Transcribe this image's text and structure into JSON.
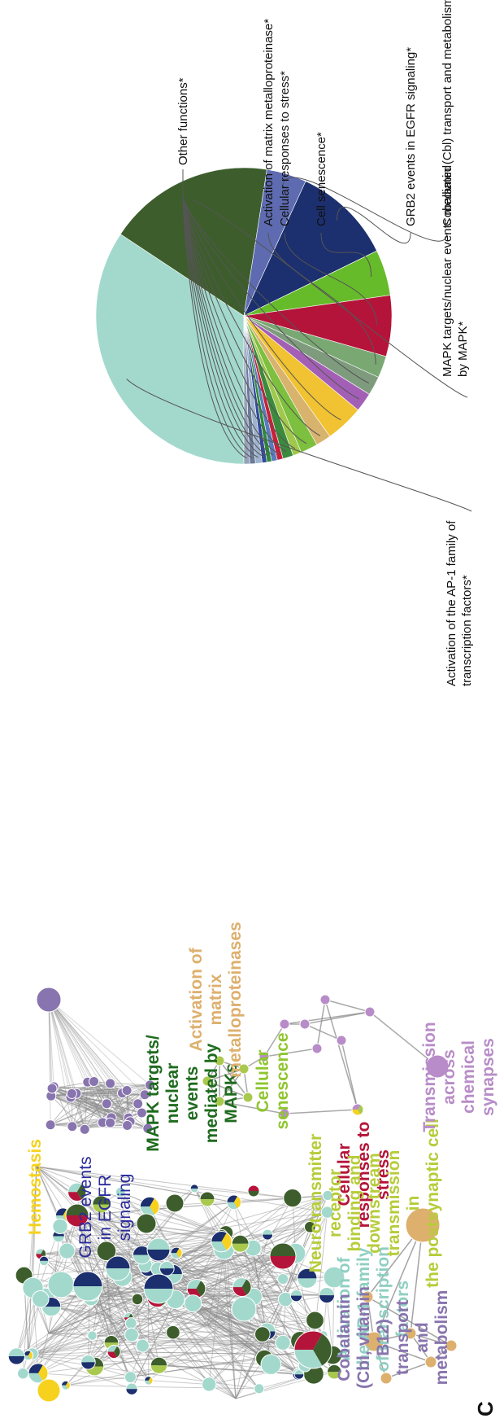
{
  "panel_letter": "C",
  "colors": {
    "ap1": "#a3d9cd",
    "mapk": "#3d5e2c",
    "grb2": "#1c2f6e",
    "grb2_light": "#5e6bb0",
    "stress": "#b5143a",
    "senescence": "#66bb2a",
    "senescence_light": "#a9c94e",
    "hemostasis": "#f6d21e",
    "mmp": "#ddb06e",
    "cobalamin": "#8874ae",
    "synapse": "#b88cc8",
    "edge": "#8c8c8c"
  },
  "network_labels": {
    "ap1": "Activation of the AP-1 family of transcription factors",
    "stress": "Cellular responses to stress",
    "senescence": "Cellular senescence",
    "mapk": "MAPK targets/ nuclear events mediated by MAPKs",
    "grb2": "GRB2 events in EGFR signaling",
    "hemostasis": "Hemostasis",
    "mmp": "Activation of matrix metalloproteinases",
    "cobalamin": "Cobalamin (Cbl, vitamin B12) transport and metabolism",
    "neuro": "Neurotransmitter receptor binding and downstream transmission in the postsynaptic cell",
    "synapse": "Transmission across chemical synapses"
  },
  "chart_data": {
    "type": "pie",
    "slices": [
      {
        "label": "Activation of the AP-1 family of transcription factors*",
        "value": 33.0,
        "color": "#a3d9cd"
      },
      {
        "label": "MAPK targets/nuclear events mediated by MAPK*",
        "value": 17.5,
        "color": "#3d5e2c"
      },
      {
        "label": "Cobalamin (Cbl) transport and metabolism*",
        "value": 4.2,
        "color": "#5e6bb0"
      },
      {
        "label": "GRB2 events in EGFR signaling*",
        "value": 10.5,
        "color": "#1c2f6e"
      },
      {
        "label": "Cell senescence*",
        "value": 4.8,
        "color": "#66bb2a"
      },
      {
        "label": "Cellular responses to stress*",
        "value": 6.4,
        "color": "#b5143a"
      },
      {
        "label": "",
        "value": 2.3,
        "color": "#7aa873"
      },
      {
        "label": "",
        "value": 2.0,
        "color": "#7f9b7e"
      },
      {
        "label": "",
        "value": 2.0,
        "color": "#a35fb5"
      },
      {
        "label": "",
        "value": 4.0,
        "color": "#f1c231"
      },
      {
        "label": "",
        "value": 1.6,
        "color": "#d8b36e"
      },
      {
        "label": "",
        "value": 1.8,
        "color": "#7dbf3e"
      },
      {
        "label": "",
        "value": 0.9,
        "color": "#a0c84b"
      },
      {
        "label": "",
        "value": 1.1,
        "color": "#3b8a3e"
      },
      {
        "label": "",
        "value": 0.6,
        "color": "#c8203a"
      },
      {
        "label": "",
        "value": 0.6,
        "color": "#5a7bbd"
      },
      {
        "label": "",
        "value": 0.5,
        "color": "#2e8a3a"
      },
      {
        "label": "",
        "value": 0.5,
        "color": "#314a9b"
      },
      {
        "label": "",
        "value": 0.7,
        "color": "#9db3cf"
      },
      {
        "label": "",
        "value": 0.6,
        "color": "#6c7a9a"
      },
      {
        "label": "",
        "value": 0.6,
        "color": "#94a3b8"
      }
    ],
    "annotations": {
      "activation_mmp": "Activation of matrix metalloproteinase*",
      "other": "Other functions*"
    }
  }
}
